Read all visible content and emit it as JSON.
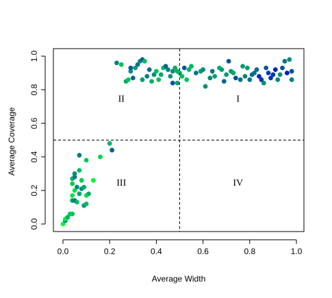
{
  "chart_data": {
    "type": "scatter",
    "title": "",
    "xlabel": "Average Width",
    "ylabel": "Average Coverage",
    "xlim": [
      0,
      1
    ],
    "ylim": [
      0,
      1
    ],
    "x_ticks": [
      "0.0",
      "0.2",
      "0.4",
      "0.6",
      "0.8",
      "1.0"
    ],
    "y_ticks": [
      "0.0",
      "0.2",
      "0.4",
      "0.6",
      "0.8",
      "1.0"
    ],
    "grid": false,
    "legend": "none",
    "reference_lines": {
      "x": 0.5,
      "y": 0.5,
      "style": "dashed"
    },
    "quadrant_labels": [
      {
        "text": "I",
        "x": 0.75,
        "y": 0.75
      },
      {
        "text": "II",
        "x": 0.25,
        "y": 0.75
      },
      {
        "text": "III",
        "x": 0.25,
        "y": 0.25
      },
      {
        "text": "IV",
        "x": 0.75,
        "y": 0.25
      }
    ],
    "color_gradient": [
      "#00ff33",
      "#000bcc"
    ],
    "points": [
      [
        0.0,
        0.0
      ],
      [
        0.01,
        0.02
      ],
      [
        0.01,
        0.03
      ],
      [
        0.02,
        0.04
      ],
      [
        0.03,
        0.06
      ],
      [
        0.04,
        0.06
      ],
      [
        0.04,
        0.14
      ],
      [
        0.04,
        0.17
      ],
      [
        0.04,
        0.24
      ],
      [
        0.04,
        0.27
      ],
      [
        0.05,
        0.28
      ],
      [
        0.05,
        0.3
      ],
      [
        0.05,
        0.2
      ],
      [
        0.05,
        0.14
      ],
      [
        0.06,
        0.22
      ],
      [
        0.06,
        0.13
      ],
      [
        0.07,
        0.41
      ],
      [
        0.07,
        0.32
      ],
      [
        0.07,
        0.18
      ],
      [
        0.08,
        0.26
      ],
      [
        0.08,
        0.21
      ],
      [
        0.09,
        0.22
      ],
      [
        0.09,
        0.11
      ],
      [
        0.1,
        0.12
      ],
      [
        0.1,
        0.17
      ],
      [
        0.1,
        0.38
      ],
      [
        0.11,
        0.18
      ],
      [
        0.13,
        0.26
      ],
      [
        0.16,
        0.4
      ],
      [
        0.2,
        0.48
      ],
      [
        0.21,
        0.44
      ],
      [
        0.23,
        0.96
      ],
      [
        0.25,
        0.95
      ],
      [
        0.27,
        0.85
      ],
      [
        0.28,
        0.86
      ],
      [
        0.29,
        0.91
      ],
      [
        0.29,
        0.93
      ],
      [
        0.3,
        0.87
      ],
      [
        0.31,
        0.93
      ],
      [
        0.32,
        0.95
      ],
      [
        0.33,
        0.97
      ],
      [
        0.34,
        0.98
      ],
      [
        0.34,
        0.86
      ],
      [
        0.35,
        0.97
      ],
      [
        0.36,
        0.88
      ],
      [
        0.37,
        0.92
      ],
      [
        0.38,
        0.85
      ],
      [
        0.39,
        0.89
      ],
      [
        0.4,
        0.91
      ],
      [
        0.41,
        0.86
      ],
      [
        0.42,
        0.89
      ],
      [
        0.43,
        0.93
      ],
      [
        0.44,
        0.94
      ],
      [
        0.45,
        0.92
      ],
      [
        0.46,
        0.88
      ],
      [
        0.47,
        0.84
      ],
      [
        0.47,
        0.91
      ],
      [
        0.48,
        0.93
      ],
      [
        0.49,
        0.84
      ],
      [
        0.49,
        0.91
      ],
      [
        0.5,
        0.9
      ],
      [
        0.51,
        0.88
      ],
      [
        0.52,
        0.93
      ],
      [
        0.53,
        0.86
      ],
      [
        0.54,
        0.92
      ],
      [
        0.55,
        0.94
      ],
      [
        0.57,
        0.9
      ],
      [
        0.59,
        0.91
      ],
      [
        0.6,
        0.92
      ],
      [
        0.61,
        0.82
      ],
      [
        0.63,
        0.87
      ],
      [
        0.64,
        0.91
      ],
      [
        0.65,
        0.88
      ],
      [
        0.67,
        0.93
      ],
      [
        0.68,
        0.92
      ],
      [
        0.69,
        0.85
      ],
      [
        0.7,
        0.89
      ],
      [
        0.71,
        0.97
      ],
      [
        0.72,
        0.91
      ],
      [
        0.73,
        0.9
      ],
      [
        0.74,
        0.87
      ],
      [
        0.76,
        0.86
      ],
      [
        0.77,
        0.94
      ],
      [
        0.78,
        0.88
      ],
      [
        0.79,
        0.93
      ],
      [
        0.8,
        0.86
      ],
      [
        0.81,
        0.89
      ],
      [
        0.82,
        0.9
      ],
      [
        0.83,
        0.92
      ],
      [
        0.84,
        0.88
      ],
      [
        0.85,
        0.86
      ],
      [
        0.86,
        0.84
      ],
      [
        0.87,
        0.93
      ],
      [
        0.88,
        0.9
      ],
      [
        0.89,
        0.87
      ],
      [
        0.9,
        0.89
      ],
      [
        0.91,
        0.92
      ],
      [
        0.92,
        0.86
      ],
      [
        0.93,
        0.89
      ],
      [
        0.94,
        0.93
      ],
      [
        0.95,
        0.97
      ],
      [
        0.96,
        0.9
      ],
      [
        0.97,
        0.98
      ],
      [
        0.98,
        0.86
      ],
      [
        0.98,
        0.91
      ]
    ]
  }
}
